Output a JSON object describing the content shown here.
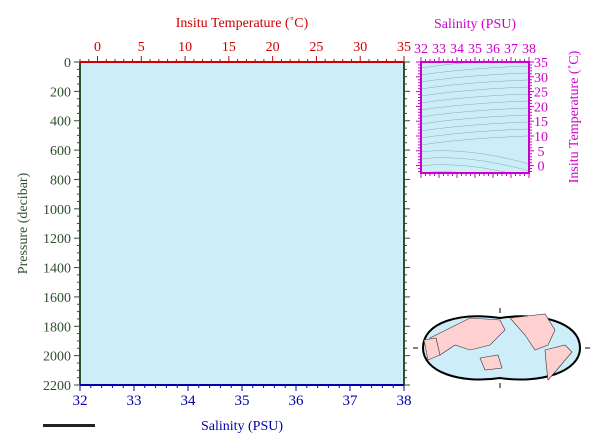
{
  "chart_data": [
    {
      "type": "line",
      "title": "",
      "top_axis": {
        "label": "Insitu Temperature (˚C)",
        "range": [
          -2,
          35
        ],
        "ticks": [
          0,
          5,
          10,
          15,
          20,
          25,
          30,
          35
        ],
        "color": "#cc0000"
      },
      "bottom_axis": {
        "label": "Salinity (PSU)",
        "range": [
          32,
          38
        ],
        "ticks": [
          32,
          33,
          34,
          35,
          36,
          37,
          38
        ],
        "color": "#0000aa"
      },
      "left_axis": {
        "label": "Pressure (decibar)",
        "range": [
          0,
          2200
        ],
        "reversed": true,
        "ticks": [
          0,
          200,
          400,
          600,
          800,
          1000,
          1200,
          1400,
          1600,
          1800,
          2000,
          2200
        ],
        "color": "#2f4f2f"
      },
      "series": [],
      "background": "#cdeef8",
      "grid": false
    },
    {
      "type": "line",
      "top_axis": {
        "label": "Salinity (PSU)",
        "range": [
          32,
          38
        ],
        "ticks": [
          32,
          33,
          34,
          35,
          36,
          37,
          38
        ],
        "color": "#cc00cc"
      },
      "right_axis": {
        "label": "Insitu Temperature (˚C)",
        "range": [
          -2,
          35
        ],
        "ticks": [
          0,
          5,
          10,
          15,
          20,
          25,
          30,
          35
        ],
        "color": "#cc00cc"
      },
      "contours": "density isopycnals",
      "background": "#cdeef8"
    }
  ],
  "map": {
    "land_color": "#ffd0d0",
    "ocean_color": "#cdeef8",
    "projection": "pacific-centered world"
  },
  "footer_logo": "small text mark"
}
